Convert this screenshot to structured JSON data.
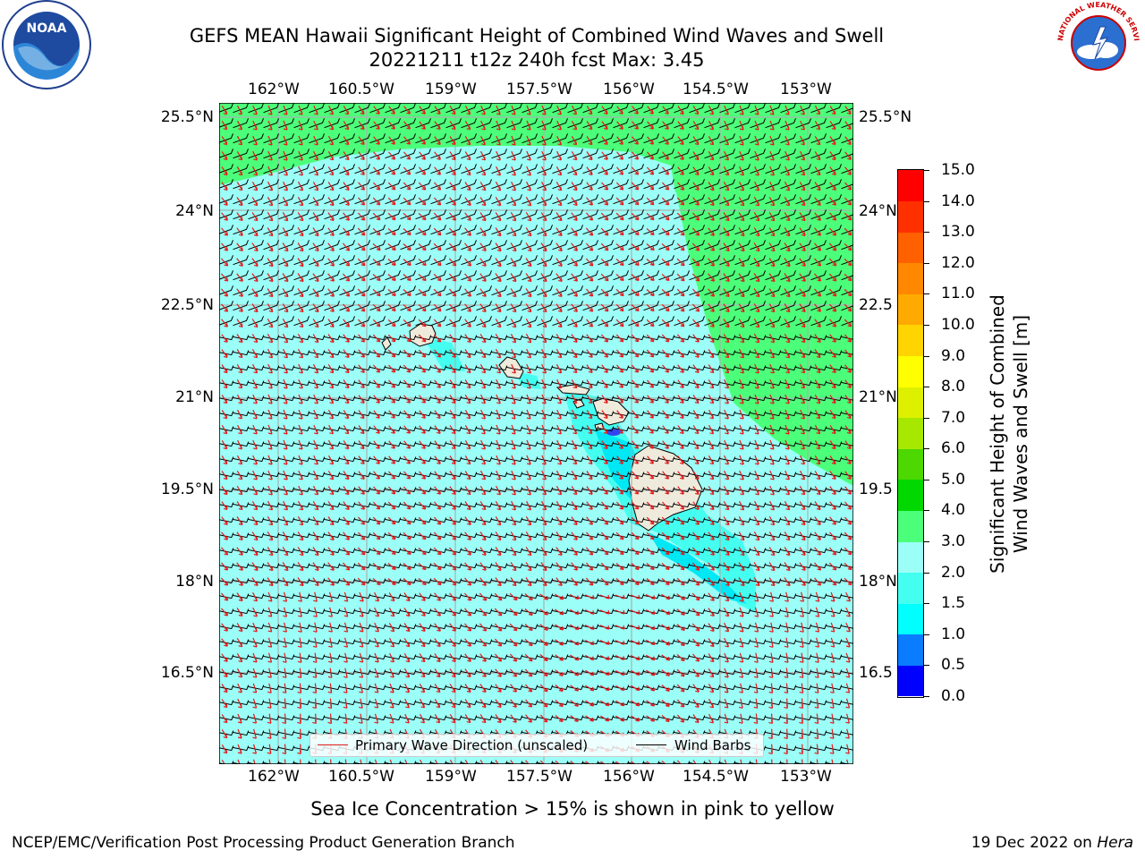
{
  "title": {
    "line1": "GEFS MEAN Hawaii Significant Height of Combined Wind Waves and Swell",
    "line2": "20221211 t12z 240h fcst   Max: 3.45"
  },
  "axes": {
    "lon_labels": [
      "162°W",
      "160.5°W",
      "159°W",
      "157.5°W",
      "156°W",
      "154.5°W",
      "153°W"
    ],
    "lat_labels_left": [
      "25.5°N",
      "24°N",
      "22.5°N",
      "21°N",
      "19.5°N",
      "18°N",
      "16.5°N"
    ],
    "lat_labels_right": [
      "25.5°N",
      "24°N",
      "22.5",
      "21°N",
      "19.5",
      "18°N",
      "16.5"
    ]
  },
  "legend": {
    "wave_label": "Primary Wave Direction (unscaled)",
    "wave_color": "#e31a1c",
    "wind_label": "Wind Barbs",
    "wind_color": "#000000"
  },
  "colorbar": {
    "title_line1": "Significant Height of Combined",
    "title_line2": "Wind Waves and Swell [m]",
    "ticks": [
      "0.0",
      "0.5",
      "1.0",
      "1.5",
      "2.0",
      "3.0",
      "4.0",
      "5.0",
      "6.0",
      "7.0",
      "8.0",
      "9.0",
      "10.0",
      "11.0",
      "12.0",
      "13.0",
      "14.0",
      "15.0"
    ],
    "colors": [
      "#0000ff",
      "#0a7cff",
      "#00ffff",
      "#44fff0",
      "#9bfff8",
      "#4cff7a",
      "#00d800",
      "#4cd800",
      "#a6e800",
      "#ddf000",
      "#ffff00",
      "#ffd400",
      "#ffaa00",
      "#ff8800",
      "#ff6000",
      "#ff3000",
      "#ff0000"
    ]
  },
  "map_colors": {
    "ocean_main": "#9bfff8",
    "ocean_lee": "#44fff0",
    "ocean_lee_dark": "#00e8f4",
    "high_seas": "#4cff7a",
    "land": "#efebdc",
    "blue_spot": "#3344ee"
  },
  "note": "Sea Ice Concentration > 15% is shown in pink to yellow",
  "footer": {
    "left": "NCEP/EMC/Verification Post Processing Product Generation Branch",
    "right_prefix": "19 Dec 2022 on ",
    "right_host": "Hera"
  },
  "logos": {
    "noaa_text": "NOAA",
    "nws_text": "NATIONAL WEATHER SERVICE",
    "noaa_icon": "noaa-logo-icon",
    "nws_icon": "nws-logo-icon"
  }
}
